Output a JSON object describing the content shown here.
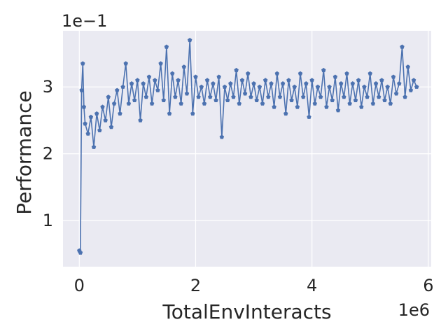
{
  "chart_data": {
    "type": "line",
    "xlabel": "TotalEnvInteracts",
    "ylabel": "Performance",
    "x_offset_label": "1e6",
    "y_offset_label": "1e−1",
    "xlim": [
      -0.28,
      6.05
    ],
    "ylim": [
      0.31,
      3.84
    ],
    "x_ticks": [
      0,
      2,
      4,
      6
    ],
    "x_tick_labels": [
      "0",
      "2",
      "4",
      "6"
    ],
    "y_ticks": [
      1,
      2,
      3
    ],
    "y_tick_labels": [
      "1",
      "2",
      "3"
    ],
    "grid": true,
    "background": "#eaeaf2",
    "series": [
      {
        "color": "#4c72b0",
        "marker": "pentagon",
        "points": [
          [
            0.0,
            0.55
          ],
          [
            0.02,
            0.52
          ],
          [
            0.04,
            2.95
          ],
          [
            0.06,
            3.35
          ],
          [
            0.08,
            2.7
          ],
          [
            0.1,
            2.45
          ],
          [
            0.15,
            2.3
          ],
          [
            0.2,
            2.55
          ],
          [
            0.25,
            2.1
          ],
          [
            0.3,
            2.6
          ],
          [
            0.35,
            2.35
          ],
          [
            0.4,
            2.7
          ],
          [
            0.45,
            2.5
          ],
          [
            0.5,
            2.85
          ],
          [
            0.55,
            2.4
          ],
          [
            0.6,
            2.75
          ],
          [
            0.65,
            2.95
          ],
          [
            0.7,
            2.6
          ],
          [
            0.75,
            3.0
          ],
          [
            0.8,
            3.35
          ],
          [
            0.85,
            2.75
          ],
          [
            0.9,
            3.05
          ],
          [
            0.95,
            2.8
          ],
          [
            1.0,
            3.1
          ],
          [
            1.05,
            2.5
          ],
          [
            1.1,
            3.05
          ],
          [
            1.15,
            2.85
          ],
          [
            1.2,
            3.15
          ],
          [
            1.25,
            2.75
          ],
          [
            1.3,
            3.1
          ],
          [
            1.35,
            2.95
          ],
          [
            1.4,
            3.35
          ],
          [
            1.45,
            2.8
          ],
          [
            1.5,
            3.6
          ],
          [
            1.55,
            2.6
          ],
          [
            1.6,
            3.2
          ],
          [
            1.65,
            2.85
          ],
          [
            1.7,
            3.1
          ],
          [
            1.75,
            2.75
          ],
          [
            1.8,
            3.3
          ],
          [
            1.85,
            2.9
          ],
          [
            1.9,
            3.7
          ],
          [
            1.95,
            2.6
          ],
          [
            2.0,
            3.15
          ],
          [
            2.05,
            2.85
          ],
          [
            2.1,
            3.0
          ],
          [
            2.15,
            2.75
          ],
          [
            2.2,
            3.1
          ],
          [
            2.25,
            2.85
          ],
          [
            2.3,
            3.05
          ],
          [
            2.35,
            2.8
          ],
          [
            2.4,
            3.15
          ],
          [
            2.45,
            2.25
          ],
          [
            2.5,
            3.0
          ],
          [
            2.55,
            2.8
          ],
          [
            2.6,
            3.05
          ],
          [
            2.65,
            2.85
          ],
          [
            2.7,
            3.25
          ],
          [
            2.75,
            2.75
          ],
          [
            2.8,
            3.1
          ],
          [
            2.85,
            2.9
          ],
          [
            2.9,
            3.2
          ],
          [
            2.95,
            2.85
          ],
          [
            3.0,
            3.05
          ],
          [
            3.05,
            2.8
          ],
          [
            3.1,
            3.0
          ],
          [
            3.15,
            2.75
          ],
          [
            3.2,
            3.1
          ],
          [
            3.25,
            2.85
          ],
          [
            3.3,
            3.05
          ],
          [
            3.35,
            2.7
          ],
          [
            3.4,
            3.2
          ],
          [
            3.45,
            2.85
          ],
          [
            3.5,
            3.05
          ],
          [
            3.55,
            2.6
          ],
          [
            3.6,
            3.1
          ],
          [
            3.65,
            2.8
          ],
          [
            3.7,
            3.0
          ],
          [
            3.75,
            2.7
          ],
          [
            3.8,
            3.2
          ],
          [
            3.85,
            2.85
          ],
          [
            3.9,
            3.05
          ],
          [
            3.95,
            2.55
          ],
          [
            4.0,
            3.1
          ],
          [
            4.05,
            2.75
          ],
          [
            4.1,
            3.0
          ],
          [
            4.15,
            2.85
          ],
          [
            4.2,
            3.25
          ],
          [
            4.25,
            2.7
          ],
          [
            4.3,
            3.0
          ],
          [
            4.35,
            2.8
          ],
          [
            4.4,
            3.15
          ],
          [
            4.45,
            2.65
          ],
          [
            4.5,
            3.05
          ],
          [
            4.55,
            2.85
          ],
          [
            4.6,
            3.2
          ],
          [
            4.65,
            2.75
          ],
          [
            4.7,
            3.05
          ],
          [
            4.75,
            2.8
          ],
          [
            4.8,
            3.1
          ],
          [
            4.85,
            2.7
          ],
          [
            4.9,
            3.0
          ],
          [
            4.95,
            2.85
          ],
          [
            5.0,
            3.2
          ],
          [
            5.05,
            2.75
          ],
          [
            5.1,
            3.05
          ],
          [
            5.15,
            2.85
          ],
          [
            5.2,
            3.1
          ],
          [
            5.25,
            2.8
          ],
          [
            5.3,
            3.0
          ],
          [
            5.35,
            2.75
          ],
          [
            5.4,
            3.15
          ],
          [
            5.45,
            2.9
          ],
          [
            5.5,
            3.05
          ],
          [
            5.55,
            3.6
          ],
          [
            5.6,
            2.85
          ],
          [
            5.65,
            3.3
          ],
          [
            5.7,
            2.95
          ],
          [
            5.75,
            3.1
          ],
          [
            5.8,
            3.0
          ]
        ]
      }
    ]
  }
}
